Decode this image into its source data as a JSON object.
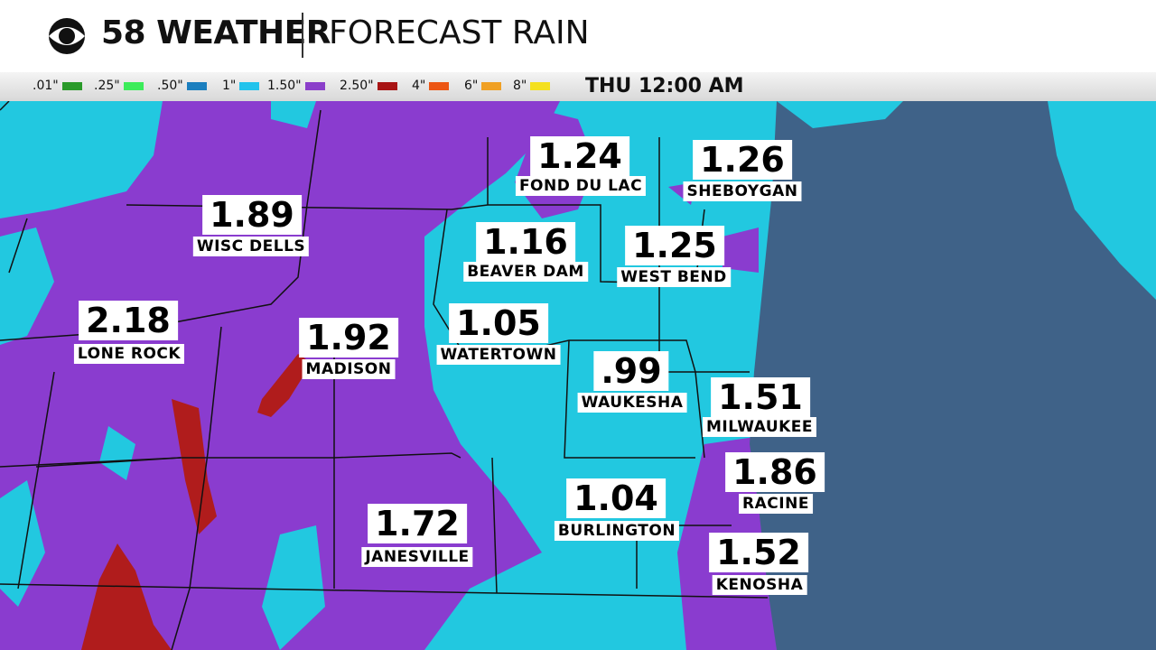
{
  "header": {
    "brand": "58 WEATHER",
    "title": "FORECAST RAIN"
  },
  "legend": [
    {
      "label": ".01\"",
      "color": "#2a9a2a"
    },
    {
      "label": ".25\"",
      "color": "#3cec5a"
    },
    {
      "label": ".50\"",
      "color": "#1b7fbf"
    },
    {
      "label": "1\"",
      "color": "#22c3ec"
    },
    {
      "label": "1.50\"",
      "color": "#8b3fca"
    },
    {
      "label": "2.50\"",
      "color": "#a81414"
    },
    {
      "label": "4\"",
      "color": "#ec5614"
    },
    {
      "label": "6\"",
      "color": "#f0a024"
    },
    {
      "label": "8\"",
      "color": "#f4e01e"
    }
  ],
  "time": "THU 12:00 AM",
  "locations": [
    {
      "value": "1.24",
      "name": "FOND DU LAC"
    },
    {
      "value": "1.26",
      "name": "SHEBOYGAN"
    },
    {
      "value": "1.89",
      "name": "WISC DELLS"
    },
    {
      "value": "1.16",
      "name": "BEAVER DAM"
    },
    {
      "value": "1.25",
      "name": "WEST BEND"
    },
    {
      "value": "2.18",
      "name": "LONE ROCK"
    },
    {
      "value": "1.92",
      "name": "MADISON"
    },
    {
      "value": "1.05",
      "name": "WATERTOWN"
    },
    {
      "value": ".99",
      "name": "WAUKESHA"
    },
    {
      "value": "1.51",
      "name": "MILWAUKEE"
    },
    {
      "value": "1.86",
      "name": "RACINE"
    },
    {
      "value": "1.04",
      "name": "BURLINGTON"
    },
    {
      "value": "1.72",
      "name": "JANESVILLE"
    },
    {
      "value": "1.52",
      "name": "KENOSHA"
    }
  ]
}
